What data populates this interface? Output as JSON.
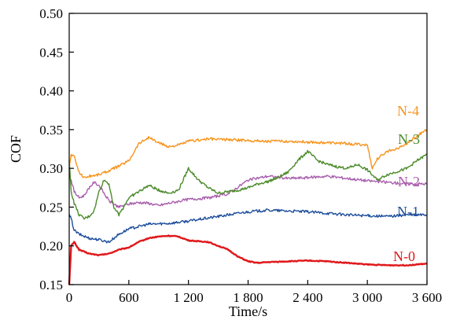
{
  "chart_data": {
    "type": "line",
    "xlabel": "Time/s",
    "ylabel": "COF",
    "xlim": [
      0,
      3600
    ],
    "ylim": [
      0.15,
      0.5
    ],
    "xticks": [
      0,
      600,
      1200,
      1800,
      2400,
      3000,
      3600
    ],
    "xtick_labels": [
      "0",
      "600",
      "1 200",
      "1 800",
      "2 400",
      "3 000",
      "3 600"
    ],
    "yticks": [
      0.15,
      0.2,
      0.25,
      0.3,
      0.35,
      0.4,
      0.45,
      0.5
    ],
    "ytick_labels": [
      "0.15",
      "0.20",
      "0.25",
      "0.30",
      "0.35",
      "0.40",
      "0.45",
      "0.50"
    ],
    "grid": false,
    "legend": "inline labels at right",
    "series": [
      {
        "name": "N-0",
        "color": "#e0181b",
        "x": [
          0,
          20,
          50,
          100,
          200,
          300,
          400,
          500,
          600,
          700,
          800,
          900,
          1000,
          1100,
          1200,
          1300,
          1400,
          1500,
          1600,
          1700,
          1800,
          1900,
          2000,
          2200,
          2400,
          2600,
          2800,
          3000,
          3200,
          3400,
          3600
        ],
        "y": [
          0.15,
          0.2,
          0.205,
          0.195,
          0.19,
          0.188,
          0.19,
          0.195,
          0.198,
          0.205,
          0.21,
          0.212,
          0.213,
          0.212,
          0.207,
          0.206,
          0.205,
          0.2,
          0.195,
          0.186,
          0.18,
          0.178,
          0.179,
          0.18,
          0.181,
          0.18,
          0.178,
          0.176,
          0.175,
          0.175,
          0.177
        ]
      },
      {
        "name": "N-1",
        "color": "#1f4e9c",
        "x": [
          0,
          20,
          50,
          100,
          200,
          300,
          400,
          500,
          600,
          700,
          800,
          1000,
          1200,
          1400,
          1600,
          1800,
          2000,
          2200,
          2400,
          2600,
          2800,
          3000,
          3200,
          3400,
          3600
        ],
        "y": [
          0.24,
          0.235,
          0.22,
          0.215,
          0.21,
          0.208,
          0.205,
          0.215,
          0.222,
          0.225,
          0.228,
          0.229,
          0.232,
          0.236,
          0.24,
          0.244,
          0.246,
          0.245,
          0.244,
          0.242,
          0.24,
          0.239,
          0.238,
          0.24,
          0.24
        ]
      },
      {
        "name": "N-2",
        "color": "#a85fad",
        "x": [
          0,
          20,
          50,
          100,
          150,
          200,
          250,
          300,
          350,
          400,
          500,
          600,
          700,
          800,
          900,
          1000,
          1200,
          1400,
          1600,
          1800,
          2000,
          2200,
          2400,
          2600,
          2800,
          3000,
          3200,
          3400,
          3600
        ],
        "y": [
          0.29,
          0.285,
          0.27,
          0.262,
          0.265,
          0.275,
          0.282,
          0.278,
          0.268,
          0.258,
          0.25,
          0.254,
          0.256,
          0.255,
          0.252,
          0.255,
          0.26,
          0.262,
          0.267,
          0.285,
          0.29,
          0.287,
          0.288,
          0.29,
          0.287,
          0.284,
          0.282,
          0.28,
          0.28
        ]
      },
      {
        "name": "N-3",
        "color": "#4b8b2a",
        "x": [
          0,
          20,
          50,
          100,
          150,
          200,
          250,
          300,
          350,
          400,
          450,
          500,
          600,
          700,
          800,
          900,
          1000,
          1100,
          1200,
          1300,
          1400,
          1500,
          1600,
          1700,
          1800,
          1900,
          2000,
          2100,
          2200,
          2300,
          2400,
          2500,
          2600,
          2700,
          2800,
          2900,
          3000,
          3100,
          3200,
          3300,
          3400,
          3500,
          3600
        ],
        "y": [
          0.31,
          0.27,
          0.255,
          0.24,
          0.235,
          0.238,
          0.245,
          0.27,
          0.285,
          0.28,
          0.25,
          0.24,
          0.262,
          0.27,
          0.278,
          0.272,
          0.268,
          0.272,
          0.3,
          0.285,
          0.275,
          0.268,
          0.27,
          0.272,
          0.275,
          0.28,
          0.283,
          0.288,
          0.295,
          0.31,
          0.322,
          0.31,
          0.305,
          0.302,
          0.3,
          0.305,
          0.298,
          0.285,
          0.292,
          0.296,
          0.3,
          0.31,
          0.318
        ]
      },
      {
        "name": "N-4",
        "color": "#f7941d",
        "x": [
          0,
          20,
          50,
          100,
          150,
          200,
          300,
          400,
          500,
          600,
          700,
          800,
          900,
          1000,
          1100,
          1200,
          1400,
          1600,
          1800,
          2000,
          2200,
          2400,
          2600,
          2800,
          3000,
          3050,
          3100,
          3200,
          3300,
          3400,
          3500,
          3600
        ],
        "y": [
          0.3,
          0.318,
          0.315,
          0.295,
          0.288,
          0.29,
          0.292,
          0.297,
          0.303,
          0.31,
          0.332,
          0.34,
          0.333,
          0.328,
          0.33,
          0.335,
          0.338,
          0.337,
          0.336,
          0.335,
          0.335,
          0.334,
          0.333,
          0.332,
          0.33,
          0.3,
          0.312,
          0.322,
          0.326,
          0.332,
          0.342,
          0.35
        ]
      }
    ]
  }
}
